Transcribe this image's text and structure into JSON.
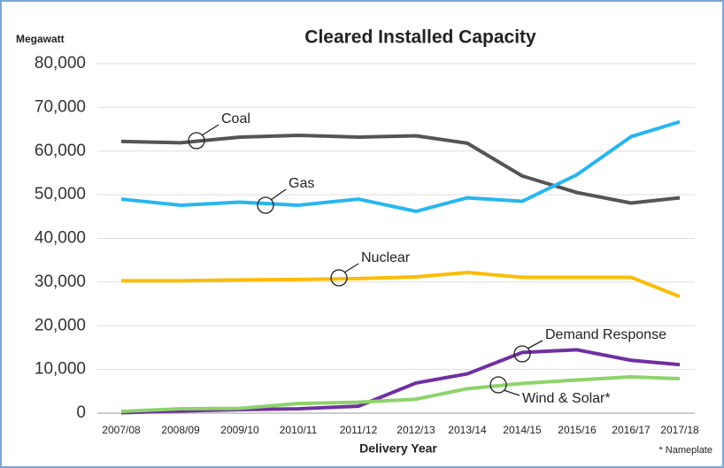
{
  "chart_data": {
    "type": "line",
    "title": "Cleared Installed Capacity",
    "y_axis_label": "Megawatt",
    "x_axis_label": "Delivery Year",
    "footnote": "* Nameplate",
    "categories": [
      "2007/08",
      "2008/09",
      "2009/10",
      "2010/11",
      "2011/12",
      "2012/13",
      "2013/14",
      "2014/15",
      "2015/16",
      "2016/17",
      "2017/18"
    ],
    "series": [
      {
        "name": "Coal",
        "color": "#555555",
        "values": [
          62200,
          61900,
          63200,
          63600,
          63200,
          63500,
          61800,
          54300,
          50500,
          48100,
          49300
        ]
      },
      {
        "name": "Gas",
        "color": "#29b6ef",
        "values": [
          49000,
          47600,
          48300,
          47600,
          49000,
          46200,
          49300,
          48500,
          54600,
          63300,
          66700
        ]
      },
      {
        "name": "Nuclear",
        "color": "#fbbc05",
        "values": [
          30300,
          30300,
          30500,
          30600,
          30800,
          31200,
          32200,
          31100,
          31100,
          31100,
          26700
        ]
      },
      {
        "name": "Demand Response",
        "color": "#7030a0",
        "values": [
          100,
          500,
          800,
          1000,
          1600,
          6900,
          9000,
          13900,
          14500,
          12100,
          11100
        ]
      },
      {
        "name": "Wind & Solar*",
        "color": "#8ed36b",
        "values": [
          400,
          1000,
          1100,
          2200,
          2500,
          3200,
          5600,
          6800,
          7600,
          8300,
          7900
        ]
      }
    ],
    "ylim": [
      0,
      80000
    ],
    "yticks": [
      0,
      {
        "value": 10000,
        "label": "10,000"
      },
      {
        "value": 20000,
        "label": "20,000"
      },
      {
        "value": 30000,
        "label": "30,000"
      },
      {
        "value": 40000,
        "label": "40,000"
      },
      {
        "value": 50000,
        "label": "50,000"
      },
      {
        "value": 60000,
        "label": "60,000"
      },
      {
        "value": 70000,
        "label": "70,000"
      },
      {
        "value": 80000,
        "label": "80,000"
      }
    ],
    "grid": true
  }
}
